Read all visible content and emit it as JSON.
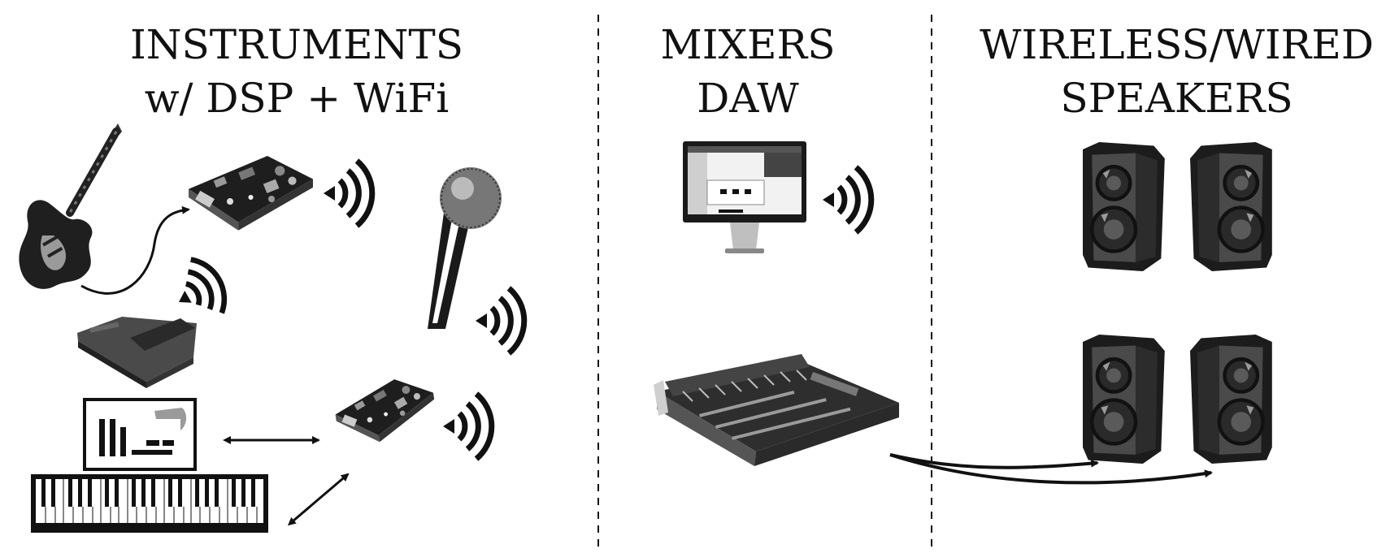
{
  "columns": [
    {
      "line1": "INSTRUMENTS",
      "line2": "w/ DSP + WiFi"
    },
    {
      "line1": "MIXERS",
      "line2": "DAW"
    },
    {
      "line1": "WIRELESS/WIRED",
      "line2": "SPEAKERS"
    }
  ],
  "icons": {
    "guitar": "electric-guitar-icon",
    "pedal": "effects-pedal-icon",
    "board": "dsp-board-icon",
    "mic": "microphone-icon",
    "keyboard": "midi-keyboard-icon",
    "monitor": "daw-monitor-icon",
    "mixer": "mixing-console-icon",
    "speaker": "loudspeaker-icon",
    "wifi": "wifi-signal-icon"
  },
  "colors": {
    "ink": "#111111",
    "dark_gray": "#3a3a3a",
    "mid_gray": "#6b6b6b",
    "light_gray": "#bdbdbd"
  }
}
